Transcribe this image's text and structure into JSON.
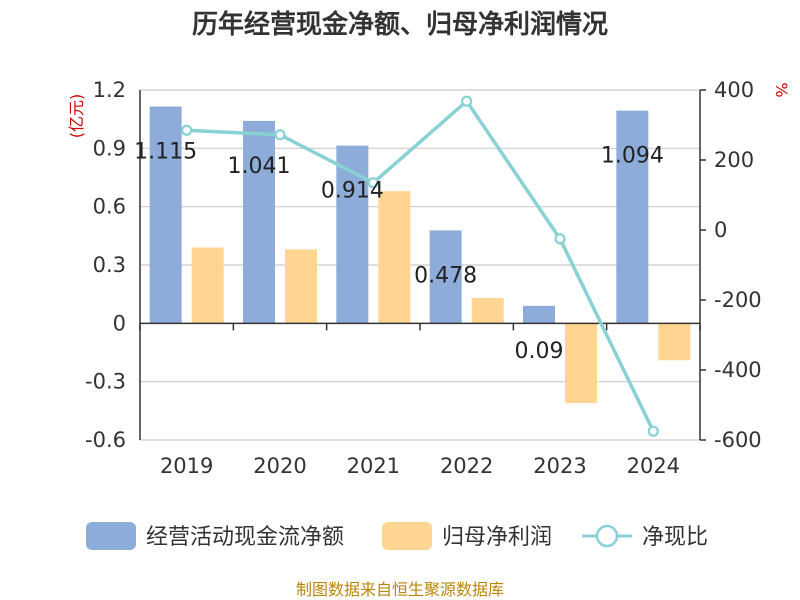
{
  "title": "历年经营现金净额、归母净利润情况",
  "source": "制图数据来自恒生聚源数据库",
  "chart_data": {
    "type": "bar",
    "categories": [
      "2019",
      "2020",
      "2021",
      "2022",
      "2023",
      "2024"
    ],
    "left_axis": {
      "unit": "(亿元)",
      "ylim": [
        -0.6,
        1.2
      ],
      "ticks": [
        1.2,
        0.9,
        0.6,
        0.3,
        0,
        -0.3,
        -0.6
      ],
      "tick_labels": [
        "1.2",
        "0.9",
        "0.6",
        "0.3",
        "0",
        "-0.3",
        "-0.6"
      ]
    },
    "right_axis": {
      "unit": "%",
      "ylim": [
        -600,
        400
      ],
      "ticks": [
        400,
        200,
        0,
        -200,
        -400,
        -600
      ],
      "tick_labels": [
        "400",
        "200",
        "0",
        "-200",
        "-400",
        "-600"
      ]
    },
    "series": [
      {
        "name": "经营活动现金流净额",
        "type": "bar",
        "axis": "left",
        "color": "#8eacd9",
        "values": [
          1.115,
          1.041,
          0.914,
          0.478,
          0.09,
          1.094
        ],
        "labels": [
          "1.115",
          "1.041",
          "0.914",
          "0.478",
          "0.09",
          "1.094"
        ]
      },
      {
        "name": "归母净利润",
        "type": "bar",
        "axis": "left",
        "color": "#ffd591",
        "values": [
          0.39,
          0.38,
          0.68,
          0.13,
          -0.41,
          -0.19
        ]
      },
      {
        "name": "净现比",
        "type": "line",
        "axis": "right",
        "color": "#88d1d4",
        "values": [
          285,
          272,
          135,
          368,
          -25,
          -575
        ]
      }
    ],
    "grid": true,
    "legend_position": "bottom"
  }
}
